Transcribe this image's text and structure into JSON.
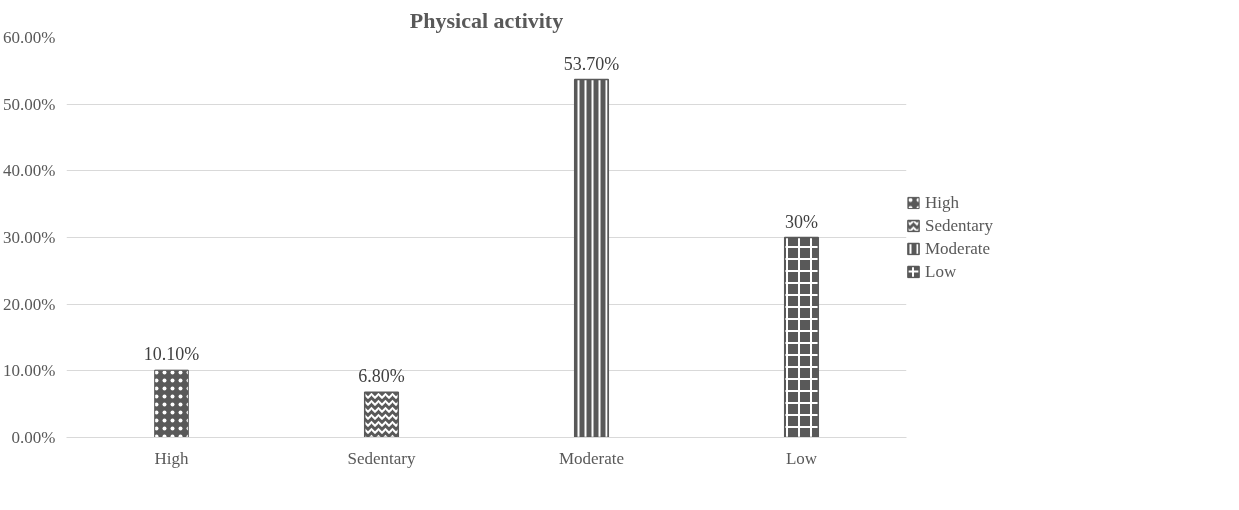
{
  "chart_data": {
    "type": "bar",
    "title": "Physical activity",
    "categories": [
      "High",
      "Sedentary",
      "Moderate",
      "Low"
    ],
    "series": [
      {
        "name": "High",
        "color": "#595959",
        "values": [
          10.1,
          null,
          null,
          null
        ],
        "value_labels": [
          "10.10%",
          null,
          null,
          null
        ]
      },
      {
        "name": "Sedentary",
        "color": "#595959",
        "values": [
          null,
          6.8,
          null,
          null
        ],
        "value_labels": [
          null,
          "6.80%",
          null,
          null
        ]
      },
      {
        "name": "Moderate",
        "color": "#595959",
        "values": [
          null,
          null,
          53.7,
          null
        ],
        "value_labels": [
          null,
          null,
          "53.70%",
          null
        ]
      },
      {
        "name": "Low",
        "color": "#595959",
        "values": [
          null,
          null,
          null,
          30
        ],
        "value_labels": [
          null,
          null,
          null,
          "30%"
        ]
      }
    ],
    "ylim": [
      0,
      60
    ],
    "yticks": [
      {
        "value": 0,
        "label": "0.00%"
      },
      {
        "value": 10,
        "label": "10.00%"
      },
      {
        "value": 20,
        "label": "20.00%"
      },
      {
        "value": 30,
        "label": "30.00%"
      },
      {
        "value": 40,
        "label": "40.00%"
      },
      {
        "value": 50,
        "label": "50.00%"
      },
      {
        "value": 60,
        "label": "60.00%"
      }
    ],
    "grid": "y",
    "legend": "right"
  }
}
